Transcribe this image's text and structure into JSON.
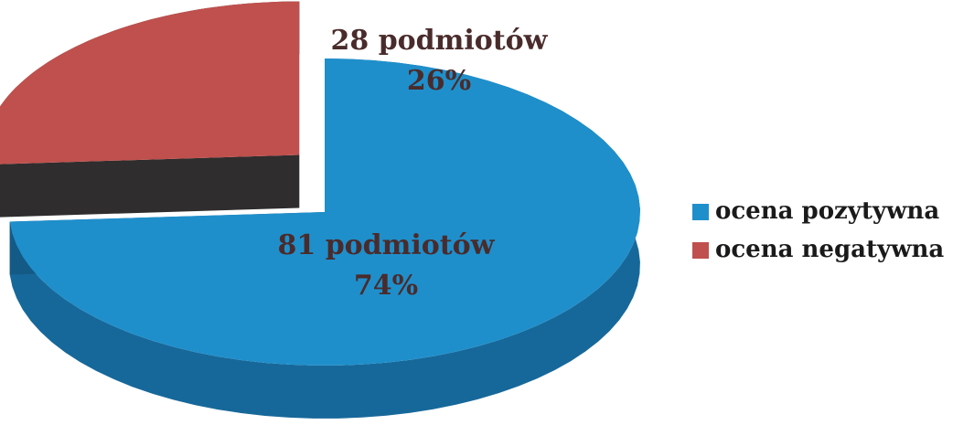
{
  "chart_data": {
    "type": "pie3d",
    "categories": [
      "ocena pozytywna",
      "ocena negatywna"
    ],
    "values": [
      74,
      26
    ],
    "value_labels": [
      "74%",
      "26%"
    ],
    "counts": [
      81,
      28
    ],
    "count_labels": [
      "81 podmiotów",
      "28 podmiotów"
    ],
    "colors": [
      "#1f8fcb",
      "#c0504d"
    ],
    "legend": "right"
  }
}
